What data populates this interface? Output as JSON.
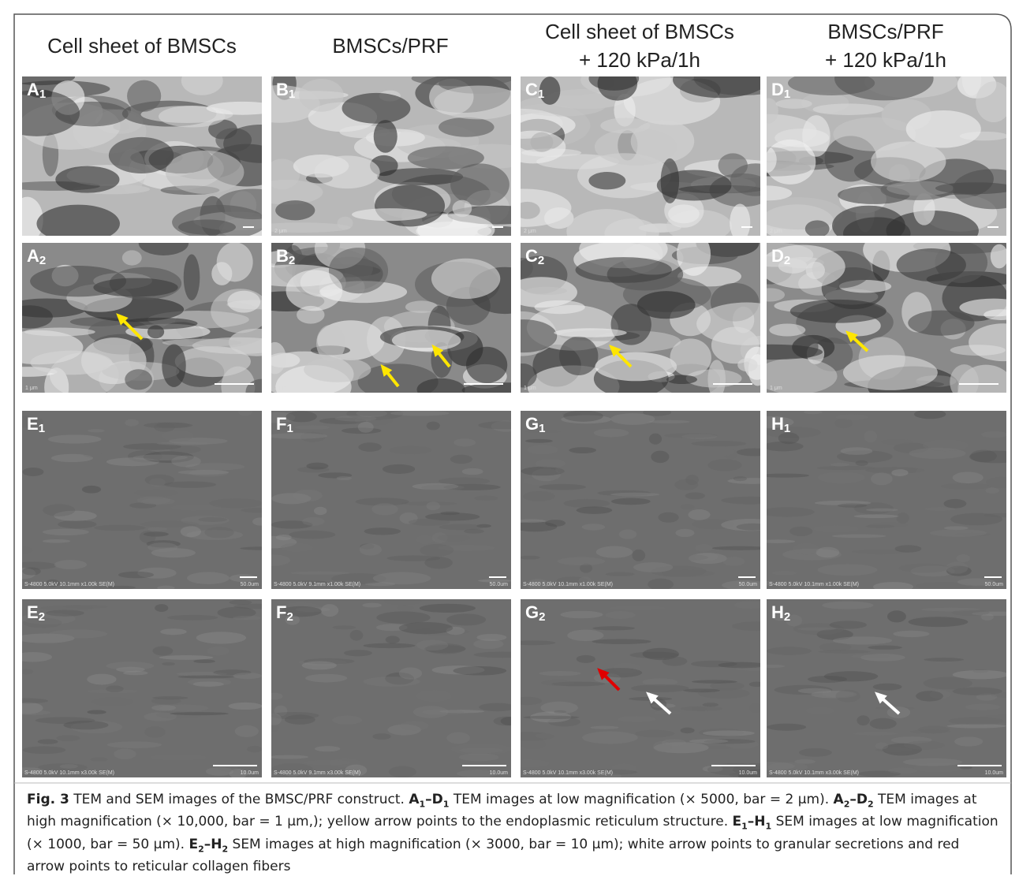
{
  "headers": [
    [
      "Cell sheet of BMSCs"
    ],
    [
      "BMSCs/PRF"
    ],
    [
      "Cell sheet of BMSCs",
      "+ 120 kPa/1h"
    ],
    [
      "BMSCs/PRF",
      "+ 120 kPa/1h"
    ]
  ],
  "panels": [
    [
      {
        "letter": "A",
        "sub": "1",
        "scale": "2 μm"
      },
      {
        "letter": "B",
        "sub": "1",
        "scale": "2 μm"
      },
      {
        "letter": "C",
        "sub": "1",
        "scale": "2 μm"
      },
      {
        "letter": "D",
        "sub": "1",
        "scale": "2 μm"
      }
    ],
    [
      {
        "letter": "A",
        "sub": "2",
        "scale": "1 μm"
      },
      {
        "letter": "B",
        "sub": "2",
        "scale": "1 μm"
      },
      {
        "letter": "C",
        "sub": "2",
        "scale": "1 μm"
      },
      {
        "letter": "D",
        "sub": "2",
        "scale": "1 μm"
      }
    ],
    [
      {
        "letter": "E",
        "sub": "1",
        "info": "S-4800 5.0kV 10.1mm x1.00k SE(M)",
        "scale": "50.0um"
      },
      {
        "letter": "F",
        "sub": "1",
        "info": "S-4800 5.0kV 9.1mm x1.00k SE(M)",
        "scale": "50.0um"
      },
      {
        "letter": "G",
        "sub": "1",
        "info": "S-4800 5.0kV 10.1mm x1.00k SE(M)",
        "scale": "50.0um"
      },
      {
        "letter": "H",
        "sub": "1",
        "info": "S-4800 5.0kV 10.1mm x1.00k SE(M)",
        "scale": "50.0um"
      }
    ],
    [
      {
        "letter": "E",
        "sub": "2",
        "info": "S-4800 5.0kV 10.1mm x3.00k SE(M)",
        "scale": "10.0um"
      },
      {
        "letter": "F",
        "sub": "2",
        "info": "S-4800 5.0kV 9.1mm x3.00k SE(M)",
        "scale": "10.0um"
      },
      {
        "letter": "G",
        "sub": "2",
        "info": "S-4800 5.0kV 10.1mm x3.00k SE(M)",
        "scale": "10.0um"
      },
      {
        "letter": "H",
        "sub": "2",
        "info": "S-4800 5.0kV 10.1mm x3.00k SE(M)",
        "scale": "10.0um"
      }
    ]
  ],
  "caption": [
    {
      "text": "Fig. 3",
      "bold": true
    },
    {
      "text": " TEM and SEM images of the BMSC/PRF construct. "
    },
    {
      "text": "A",
      "bold": true
    },
    {
      "text": "1",
      "bold": true,
      "sub": true
    },
    {
      "text": "–D",
      "bold": true
    },
    {
      "text": "1",
      "bold": true,
      "sub": true
    },
    {
      "text": " TEM images at low magnification (× 5000, bar = 2 μm). "
    },
    {
      "text": "A",
      "bold": true
    },
    {
      "text": "2",
      "bold": true,
      "sub": true
    },
    {
      "text": "–D",
      "bold": true
    },
    {
      "text": "2",
      "bold": true,
      "sub": true
    },
    {
      "text": " TEM images at high magnification (× 10,000, bar = 1 μm,); yellow arrow points to the endoplasmic reticulum structure. "
    },
    {
      "text": "E",
      "bold": true
    },
    {
      "text": "1",
      "bold": true,
      "sub": true
    },
    {
      "text": "–H",
      "bold": true
    },
    {
      "text": "1",
      "bold": true,
      "sub": true
    },
    {
      "text": " SEM images at low magnification (× 1000, bar = 50 μm). "
    },
    {
      "text": "E",
      "bold": true
    },
    {
      "text": "2",
      "bold": true,
      "sub": true
    },
    {
      "text": "–H",
      "bold": true
    },
    {
      "text": "2",
      "bold": true,
      "sub": true
    },
    {
      "text": " SEM images at high magnification (× 3000, bar = 10 μm); white arrow points to granular secretions and red arrow points to reticular collagen fibers"
    }
  ]
}
